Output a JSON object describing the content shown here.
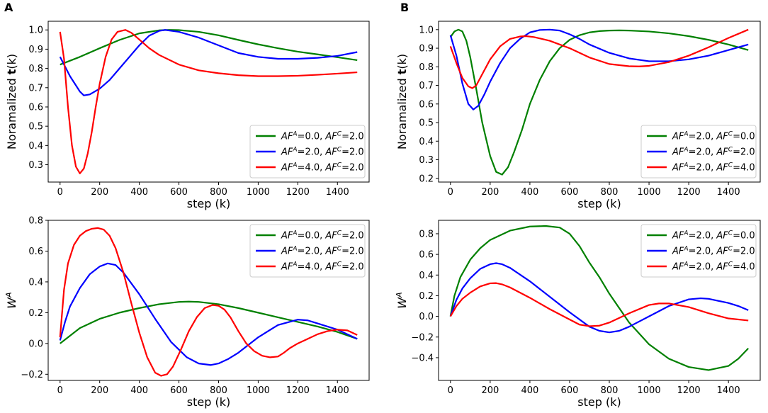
{
  "panels": [
    {
      "letter": "A"
    },
    {
      "letter": "B"
    }
  ],
  "chart_data": [
    {
      "id": "A-top",
      "type": "line",
      "xlabel": "step (k)",
      "ylabel_prefix": "Noramalized ",
      "ylabel_bold": "t",
      "ylabel_suffix": "(k)",
      "xlim": [
        -60,
        1560
      ],
      "ylim": [
        0.21,
        1.045
      ],
      "xticks": [
        0,
        200,
        400,
        600,
        800,
        1000,
        1200,
        1400
      ],
      "yticks": [
        0.3,
        0.4,
        0.5,
        0.6,
        0.7,
        0.8,
        0.9,
        1.0
      ],
      "legend_loc": "lower-right",
      "series": [
        {
          "label": "AF^A=0.0, AF^C=2.0",
          "color": "#008000",
          "x": [
            0,
            100,
            200,
            300,
            400,
            500,
            550,
            600,
            700,
            800,
            900,
            1000,
            1100,
            1200,
            1300,
            1400,
            1500
          ],
          "y": [
            0.82,
            0.86,
            0.905,
            0.948,
            0.982,
            0.998,
            1.0,
            0.999,
            0.99,
            0.972,
            0.948,
            0.925,
            0.905,
            0.887,
            0.873,
            0.858,
            0.843
          ]
        },
        {
          "label": "AF^A=2.0, AF^C=2.0",
          "color": "#0000ff",
          "x": [
            0,
            50,
            100,
            120,
            150,
            200,
            250,
            300,
            350,
            400,
            450,
            500,
            530,
            600,
            700,
            800,
            900,
            1000,
            1100,
            1200,
            1300,
            1400,
            1500
          ],
          "y": [
            0.86,
            0.76,
            0.68,
            0.66,
            0.665,
            0.695,
            0.74,
            0.8,
            0.86,
            0.92,
            0.97,
            0.995,
            1.0,
            0.99,
            0.96,
            0.92,
            0.88,
            0.86,
            0.85,
            0.85,
            0.855,
            0.865,
            0.885
          ]
        },
        {
          "label": "AF^A=4.0, AF^C=2.0",
          "color": "#ff0000",
          "x": [
            0,
            20,
            40,
            60,
            80,
            100,
            120,
            140,
            160,
            180,
            200,
            230,
            260,
            290,
            330,
            360,
            400,
            450,
            500,
            600,
            700,
            800,
            900,
            1000,
            1100,
            1200,
            1300,
            1400,
            1500
          ],
          "y": [
            0.99,
            0.85,
            0.6,
            0.4,
            0.29,
            0.255,
            0.28,
            0.36,
            0.47,
            0.6,
            0.72,
            0.86,
            0.95,
            0.99,
            1.0,
            0.985,
            0.95,
            0.905,
            0.87,
            0.82,
            0.79,
            0.775,
            0.765,
            0.76,
            0.76,
            0.762,
            0.767,
            0.773,
            0.78
          ]
        }
      ]
    },
    {
      "id": "A-bottom",
      "type": "line",
      "xlabel": "step (k)",
      "ylabel": "W^A",
      "xlim": [
        -60,
        1560
      ],
      "ylim": [
        -0.24,
        0.8
      ],
      "xticks": [
        0,
        200,
        400,
        600,
        800,
        1000,
        1200,
        1400
      ],
      "yticks": [
        -0.2,
        0.0,
        0.2,
        0.4,
        0.6,
        0.8
      ],
      "legend_loc": "upper-right",
      "series": [
        {
          "label": "AF^A=0.0, AF^C=2.0",
          "color": "#008000",
          "x": [
            0,
            50,
            100,
            150,
            200,
            300,
            400,
            500,
            600,
            650,
            700,
            800,
            900,
            1000,
            1100,
            1200,
            1300,
            1400,
            1500
          ],
          "y": [
            0.0,
            0.05,
            0.1,
            0.13,
            0.16,
            0.2,
            0.23,
            0.255,
            0.27,
            0.272,
            0.27,
            0.255,
            0.23,
            0.2,
            0.17,
            0.14,
            0.11,
            0.075,
            0.03
          ]
        },
        {
          "label": "AF^A=2.0, AF^C=2.0",
          "color": "#0000ff",
          "x": [
            0,
            25,
            50,
            100,
            150,
            200,
            240,
            280,
            320,
            400,
            480,
            560,
            640,
            700,
            760,
            800,
            850,
            900,
            1000,
            1100,
            1200,
            1250,
            1300,
            1400,
            1450,
            1500
          ],
          "y": [
            0.02,
            0.14,
            0.24,
            0.36,
            0.45,
            0.5,
            0.52,
            0.51,
            0.46,
            0.32,
            0.16,
            0.01,
            -0.09,
            -0.13,
            -0.14,
            -0.13,
            -0.1,
            -0.06,
            0.04,
            0.12,
            0.155,
            0.15,
            0.13,
            0.09,
            0.06,
            0.03
          ]
        },
        {
          "label": "AF^A=4.0, AF^C=2.0",
          "color": "#ff0000",
          "x": [
            0,
            20,
            40,
            70,
            100,
            130,
            160,
            190,
            220,
            250,
            280,
            320,
            360,
            400,
            440,
            480,
            510,
            540,
            570,
            610,
            650,
            690,
            730,
            770,
            800,
            830,
            860,
            900,
            940,
            980,
            1020,
            1060,
            1100,
            1130,
            1160,
            1200,
            1250,
            1300,
            1350,
            1400,
            1450,
            1500
          ],
          "y": [
            0.04,
            0.35,
            0.52,
            0.64,
            0.7,
            0.73,
            0.745,
            0.75,
            0.74,
            0.7,
            0.62,
            0.46,
            0.26,
            0.07,
            -0.09,
            -0.19,
            -0.21,
            -0.2,
            -0.15,
            -0.04,
            0.08,
            0.17,
            0.23,
            0.25,
            0.245,
            0.22,
            0.17,
            0.08,
            0.0,
            -0.05,
            -0.08,
            -0.09,
            -0.085,
            -0.06,
            -0.03,
            0.0,
            0.03,
            0.06,
            0.08,
            0.09,
            0.085,
            0.055
          ]
        }
      ]
    },
    {
      "id": "B-top",
      "type": "line",
      "xlabel": "step (k)",
      "ylabel_prefix": "Noramalized ",
      "ylabel_bold": "t",
      "ylabel_suffix": "(k)",
      "xlim": [
        -60,
        1560
      ],
      "ylim": [
        0.18,
        1.045
      ],
      "xticks": [
        0,
        200,
        400,
        600,
        800,
        1000,
        1200,
        1400
      ],
      "yticks": [
        0.2,
        0.3,
        0.4,
        0.5,
        0.6,
        0.7,
        0.8,
        0.9,
        1.0
      ],
      "legend_loc": "lower-right",
      "series": [
        {
          "label": "AF^A=2.0, AF^C=0.0",
          "color": "#008000",
          "x": [
            0,
            20,
            40,
            60,
            80,
            100,
            130,
            160,
            200,
            230,
            260,
            290,
            320,
            360,
            400,
            450,
            500,
            550,
            600,
            650,
            700,
            750,
            800,
            850,
            900,
            1000,
            1100,
            1200,
            1300,
            1400,
            1500
          ],
          "y": [
            0.96,
            0.99,
            1.0,
            0.99,
            0.94,
            0.85,
            0.68,
            0.5,
            0.32,
            0.235,
            0.22,
            0.26,
            0.34,
            0.46,
            0.6,
            0.73,
            0.83,
            0.9,
            0.945,
            0.97,
            0.985,
            0.992,
            0.995,
            0.996,
            0.995,
            0.99,
            0.98,
            0.965,
            0.945,
            0.92,
            0.89
          ]
        },
        {
          "label": "AF^A=2.0, AF^C=2.0",
          "color": "#0000ff",
          "x": [
            0,
            30,
            60,
            90,
            115,
            140,
            170,
            200,
            250,
            300,
            350,
            400,
            450,
            500,
            550,
            600,
            650,
            700,
            800,
            900,
            1000,
            1100,
            1200,
            1300,
            1400,
            1500
          ],
          "y": [
            0.97,
            0.86,
            0.71,
            0.6,
            0.57,
            0.59,
            0.65,
            0.72,
            0.82,
            0.9,
            0.95,
            0.985,
            0.998,
            1.0,
            0.995,
            0.975,
            0.95,
            0.92,
            0.875,
            0.845,
            0.83,
            0.83,
            0.84,
            0.86,
            0.89,
            0.92
          ]
        },
        {
          "label": "AF^A=2.0, AF^C=4.0",
          "color": "#ff0000",
          "x": [
            0,
            30,
            60,
            90,
            110,
            130,
            160,
            200,
            250,
            300,
            350,
            380,
            420,
            500,
            600,
            700,
            800,
            900,
            950,
            1000,
            1100,
            1200,
            1300,
            1400,
            1500
          ],
          "y": [
            0.91,
            0.82,
            0.74,
            0.695,
            0.685,
            0.7,
            0.76,
            0.84,
            0.91,
            0.95,
            0.963,
            0.965,
            0.96,
            0.94,
            0.9,
            0.85,
            0.815,
            0.803,
            0.802,
            0.805,
            0.825,
            0.86,
            0.905,
            0.955,
            1.0
          ]
        }
      ]
    },
    {
      "id": "B-bottom",
      "type": "line",
      "xlabel": "step (k)",
      "ylabel": "W^A",
      "xlim": [
        -60,
        1560
      ],
      "ylim": [
        -0.62,
        0.93
      ],
      "xticks": [
        0,
        200,
        400,
        600,
        800,
        1000,
        1200,
        1400
      ],
      "yticks": [
        -0.4,
        -0.2,
        0.0,
        0.2,
        0.4,
        0.6,
        0.8
      ],
      "legend_loc": "upper-right",
      "series": [
        {
          "label": "AF^A=2.0, AF^C=0.0",
          "color": "#008000",
          "x": [
            0,
            20,
            50,
            100,
            150,
            200,
            300,
            400,
            480,
            550,
            600,
            650,
            700,
            750,
            800,
            900,
            1000,
            1100,
            1200,
            1300,
            1400,
            1450,
            1500
          ],
          "y": [
            0.0,
            0.2,
            0.38,
            0.55,
            0.66,
            0.74,
            0.83,
            0.87,
            0.875,
            0.86,
            0.8,
            0.68,
            0.52,
            0.38,
            0.22,
            -0.06,
            -0.27,
            -0.41,
            -0.49,
            -0.52,
            -0.48,
            -0.41,
            -0.31
          ]
        },
        {
          "label": "AF^A=2.0, AF^C=2.0",
          "color": "#0000ff",
          "x": [
            0,
            30,
            60,
            100,
            150,
            200,
            230,
            260,
            300,
            400,
            500,
            600,
            700,
            750,
            800,
            850,
            900,
            1000,
            1100,
            1200,
            1260,
            1300,
            1400,
            1450,
            1500
          ],
          "y": [
            0.0,
            0.16,
            0.27,
            0.37,
            0.46,
            0.505,
            0.515,
            0.505,
            0.47,
            0.34,
            0.19,
            0.04,
            -0.1,
            -0.14,
            -0.155,
            -0.14,
            -0.1,
            0.0,
            0.1,
            0.165,
            0.175,
            0.17,
            0.13,
            0.1,
            0.06
          ]
        },
        {
          "label": "AF^A=2.0, AF^C=4.0",
          "color": "#ff0000",
          "x": [
            0,
            30,
            60,
            100,
            150,
            200,
            230,
            260,
            300,
            400,
            500,
            600,
            650,
            700,
            750,
            800,
            900,
            1000,
            1050,
            1100,
            1200,
            1300,
            1400,
            1500
          ],
          "y": [
            0.0,
            0.1,
            0.17,
            0.23,
            0.29,
            0.32,
            0.322,
            0.31,
            0.28,
            0.18,
            0.07,
            -0.03,
            -0.08,
            -0.095,
            -0.09,
            -0.06,
            0.03,
            0.11,
            0.125,
            0.125,
            0.09,
            0.03,
            -0.02,
            -0.04
          ]
        }
      ]
    }
  ]
}
